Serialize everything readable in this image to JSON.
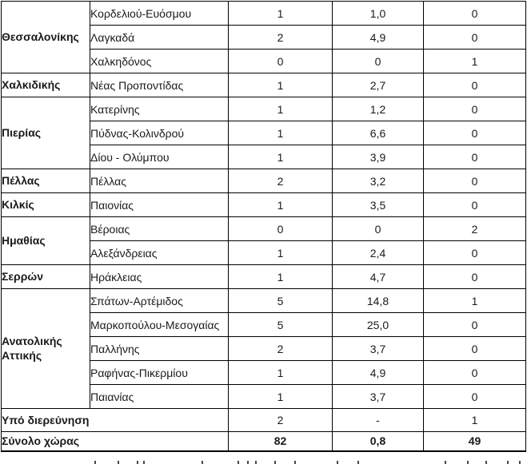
{
  "table": {
    "columns_count": 5,
    "sections": [
      {
        "region": "Θεσσαλονίκης",
        "rows": [
          {
            "municipality": "Κορδελιού-Ευόσμου",
            "values": [
              "1",
              "1,0",
              "0"
            ]
          },
          {
            "municipality": "Λαγκαδά",
            "values": [
              "2",
              "4,9",
              "0"
            ]
          },
          {
            "municipality": "Χαλκηδόνος",
            "values": [
              "0",
              "0",
              "1"
            ]
          }
        ]
      },
      {
        "region": "Χαλκιδικής",
        "rows": [
          {
            "municipality": "Νέας Προποντίδας",
            "values": [
              "1",
              "2,7",
              "0"
            ]
          }
        ]
      },
      {
        "region": "Πιερίας",
        "rows": [
          {
            "municipality": "Κατερίνης",
            "values": [
              "1",
              "1,2",
              "0"
            ]
          },
          {
            "municipality": "Πύδνας-Κολινδρού",
            "values": [
              "1",
              "6,6",
              "0"
            ]
          },
          {
            "municipality": "Δίου - Ολύμπου",
            "values": [
              "1",
              "3,9",
              "0"
            ]
          }
        ]
      },
      {
        "region": "Πέλλας",
        "rows": [
          {
            "municipality": "Πέλλας",
            "values": [
              "2",
              "3,2",
              "0"
            ]
          }
        ]
      },
      {
        "region": "Κιλκίς",
        "rows": [
          {
            "municipality": "Παιονίας",
            "values": [
              "1",
              "3,5",
              "0"
            ]
          }
        ]
      },
      {
        "region": "Ημαθίας",
        "rows": [
          {
            "municipality": "Βέροιας",
            "values": [
              "0",
              "0",
              "2"
            ]
          },
          {
            "municipality": "Αλεξάνδρειας",
            "values": [
              "1",
              "2,4",
              "0"
            ]
          }
        ]
      },
      {
        "region": "Σερρών",
        "rows": [
          {
            "municipality": "Ηράκλειας",
            "values": [
              "1",
              "4,7",
              "0"
            ]
          }
        ]
      },
      {
        "region": "Ανατολικής Αττικής",
        "rows": [
          {
            "municipality": "Σπάτων-Αρτέμιδος",
            "values": [
              "5",
              "14,8",
              "1"
            ]
          },
          {
            "municipality": "Μαρκοπούλου-Μεσογαίας",
            "values": [
              "5",
              "25,0",
              "0"
            ]
          },
          {
            "municipality": "Παλλήνης",
            "values": [
              "2",
              "3,7",
              "0"
            ]
          },
          {
            "municipality": "Ραφήνας-Πικερμίου",
            "values": [
              "1",
              "4,9",
              "0"
            ]
          },
          {
            "municipality": "Παιανίας",
            "values": [
              "1",
              "3,7",
              "0"
            ]
          }
        ]
      }
    ],
    "footer_rows": [
      {
        "label": "Υπό διερεύνηση",
        "values": [
          "2",
          "-",
          "1"
        ],
        "bold_values": false
      },
      {
        "label": "Σύνολο χώρας",
        "values": [
          "82",
          "0,8",
          "49"
        ],
        "bold_values": true
      }
    ]
  }
}
